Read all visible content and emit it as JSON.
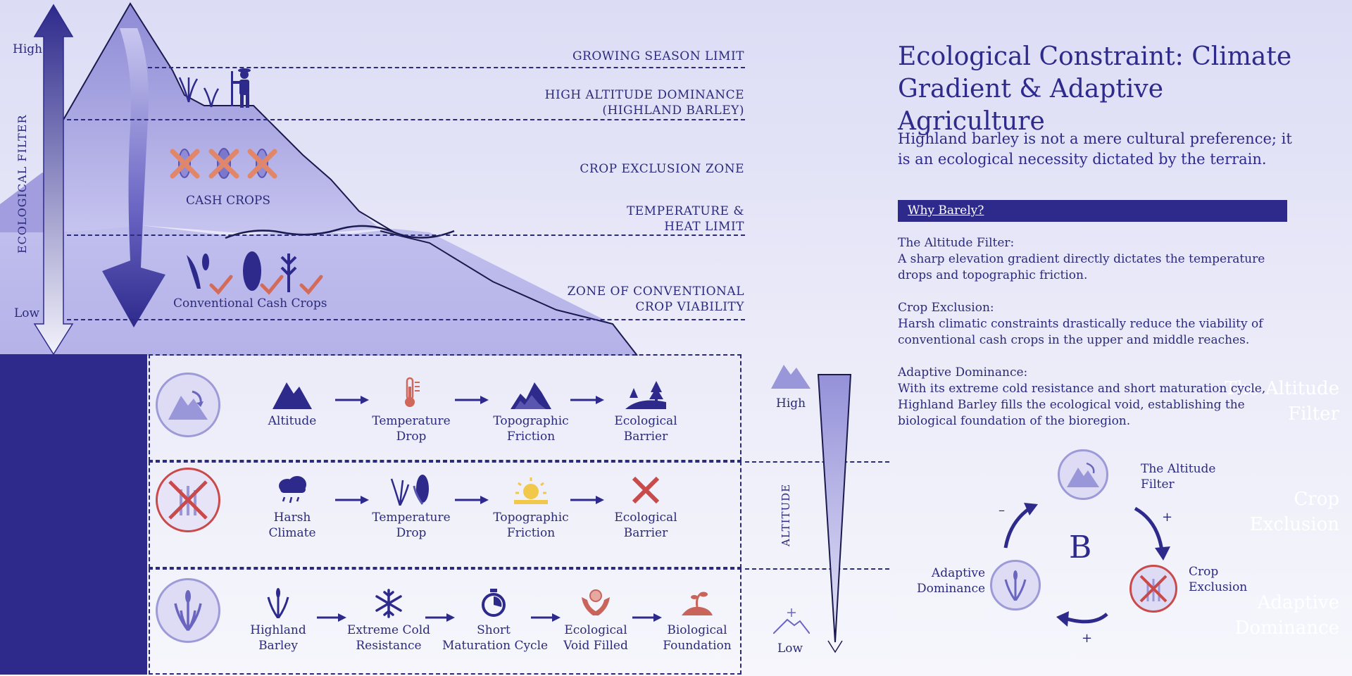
{
  "diagram": {
    "axis": {
      "high": "High",
      "low": "Low",
      "filter_label": "ECOLOGICAL FILTER"
    },
    "zones": [
      {
        "line1": "GROWING SEASON LIMIT",
        "line2": ""
      },
      {
        "line1": "HIGH ALTITUDE DOMINANCE",
        "line2": "(HIGHLAND BARLEY)"
      },
      {
        "line1": "CROP EXCLUSION ZONE",
        "line2": ""
      },
      {
        "line1": "TEMPERATURE &",
        "line2": "HEAT LIMIT"
      },
      {
        "line1": "ZONE OF CONVENTIONAL",
        "line2": "CROP VIABILITY"
      }
    ],
    "mountain_labels": {
      "cash_crops": "CASH CROPS",
      "conventional": "Conventional Cash Crops"
    }
  },
  "rows": [
    {
      "title_line1": "The Altitude",
      "title_line2": "Filter",
      "steps": [
        {
          "line1": "Altitude",
          "line2": "",
          "icon": "mountain-icon"
        },
        {
          "line1": "Temperature",
          "line2": "Drop",
          "icon": "thermometer-icon"
        },
        {
          "line1": "Topographic",
          "line2": "Friction",
          "icon": "rugged-terrain-icon"
        },
        {
          "line1": "Ecological",
          "line2": "Barrier",
          "icon": "forest-barrier-icon"
        }
      ]
    },
    {
      "title_line1": "Crop",
      "title_line2": "Exclusion",
      "steps": [
        {
          "line1": "Harsh",
          "line2": "Climate",
          "icon": "storm-cloud-icon"
        },
        {
          "line1": "Temperature",
          "line2": "Drop",
          "icon": "crops-icon"
        },
        {
          "line1": "Topographic",
          "line2": "Friction",
          "icon": "sun-icon"
        },
        {
          "line1": "Ecological",
          "line2": "Barrier",
          "icon": "red-x-icon"
        }
      ]
    },
    {
      "title_line1": "Adaptive",
      "title_line2": "Dominance",
      "steps": [
        {
          "line1": "Highland",
          "line2": "Barley",
          "icon": "barley-icon"
        },
        {
          "line1": "Extreme Cold",
          "line2": "Resistance",
          "icon": "snowflake-icon"
        },
        {
          "line1": "Short",
          "line2": "Maturation Cycle",
          "icon": "stopwatch-icon"
        },
        {
          "line1": "Ecological",
          "line2": "Void Filled",
          "icon": "hands-icon"
        },
        {
          "line1": "Biological",
          "line2": "Foundation",
          "icon": "soil-sprout-icon"
        }
      ]
    }
  ],
  "altitude_scale": {
    "high": "High",
    "low": "Low",
    "label": "ALTITUDE"
  },
  "panel": {
    "title": "Ecological Constraint: Climate Gradient & Adaptive Agriculture",
    "subtitle": "Highland barley is not a mere cultural preference; it is an ecological necessity dictated by the terrain.",
    "why_label": "Why Barely?",
    "sections": [
      {
        "heading": "The Altitude Filter:",
        "body": "A sharp elevation gradient directly dictates the temperature drops and topographic friction."
      },
      {
        "heading": "Crop Exclusion:",
        "body": "Harsh climatic constraints drastically reduce the viability of conventional cash crops in the upper and middle reaches."
      },
      {
        "heading": "Adaptive Dominance:",
        "body": "With its extreme cold resistance and short maturation cycle, Highland Barley fills the ecological void, establishing the biological foundation of the bioregion."
      }
    ]
  },
  "cycle": {
    "center": "B",
    "nodes": [
      {
        "line1": "The Altitude",
        "line2": "Filter"
      },
      {
        "line1": "Crop",
        "line2": "Exclusion"
      },
      {
        "line1": "Adaptive",
        "line2": "Dominance"
      }
    ],
    "signs": {
      "top_right": "+",
      "bottom": "+",
      "left": "–"
    }
  },
  "colors": {
    "navy": "#2e2a8c",
    "accent_red": "#c94a4a",
    "lavender": "#b7b5e8"
  }
}
